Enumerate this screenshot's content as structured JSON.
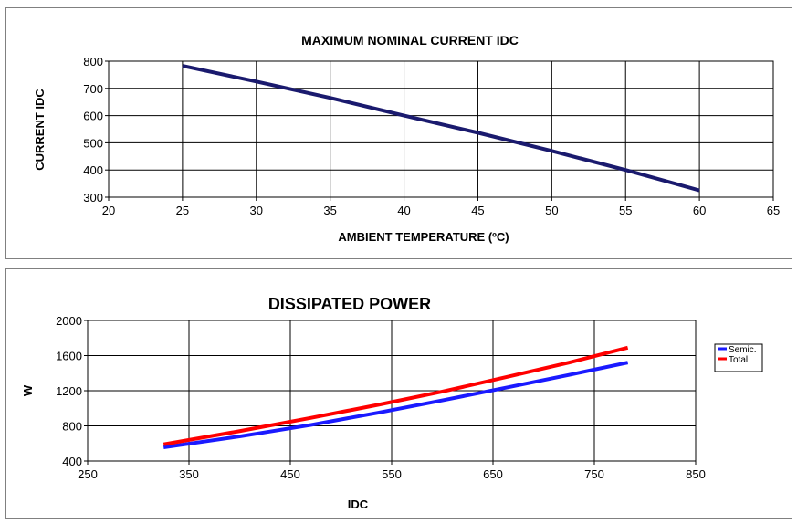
{
  "chart_data": [
    {
      "type": "line",
      "title": "MAXIMUM NOMINAL CURRENT IDC",
      "xlabel": "AMBIENT TEMPERATURE (ºC)",
      "ylabel": "CURRENT IDC",
      "xlim": [
        20,
        65
      ],
      "ylim": [
        300,
        800
      ],
      "xticks": [
        20,
        25,
        30,
        35,
        40,
        45,
        50,
        55,
        60,
        65
      ],
      "yticks": [
        300,
        400,
        500,
        600,
        700,
        800
      ],
      "grid": true,
      "legend": "none",
      "series": [
        {
          "color": "#1a1a6e",
          "x": [
            25,
            30,
            35,
            40,
            45,
            50,
            55,
            60
          ],
          "y": [
            783,
            725,
            665,
            600,
            537,
            470,
            400,
            325
          ]
        }
      ]
    },
    {
      "type": "line",
      "title": "DISSIPATED POWER",
      "xlabel": "IDC",
      "ylabel": "W",
      "xlim": [
        250,
        850
      ],
      "ylim": [
        400,
        2000
      ],
      "xticks": [
        250,
        350,
        450,
        550,
        650,
        750,
        850
      ],
      "yticks": [
        400,
        800,
        1200,
        1600,
        2000
      ],
      "grid": true,
      "legend": "right",
      "series": [
        {
          "name": "Semic.",
          "color": "#1a1aff",
          "x": [
            325,
            400,
            470,
            537,
            600,
            665,
            725,
            783
          ],
          "y": [
            555,
            680,
            810,
            950,
            1090,
            1240,
            1380,
            1520
          ]
        },
        {
          "name": "Total",
          "color": "#ff0000",
          "x": [
            325,
            400,
            470,
            537,
            600,
            665,
            725,
            783
          ],
          "y": [
            590,
            740,
            890,
            1040,
            1190,
            1360,
            1520,
            1690
          ]
        }
      ]
    }
  ]
}
